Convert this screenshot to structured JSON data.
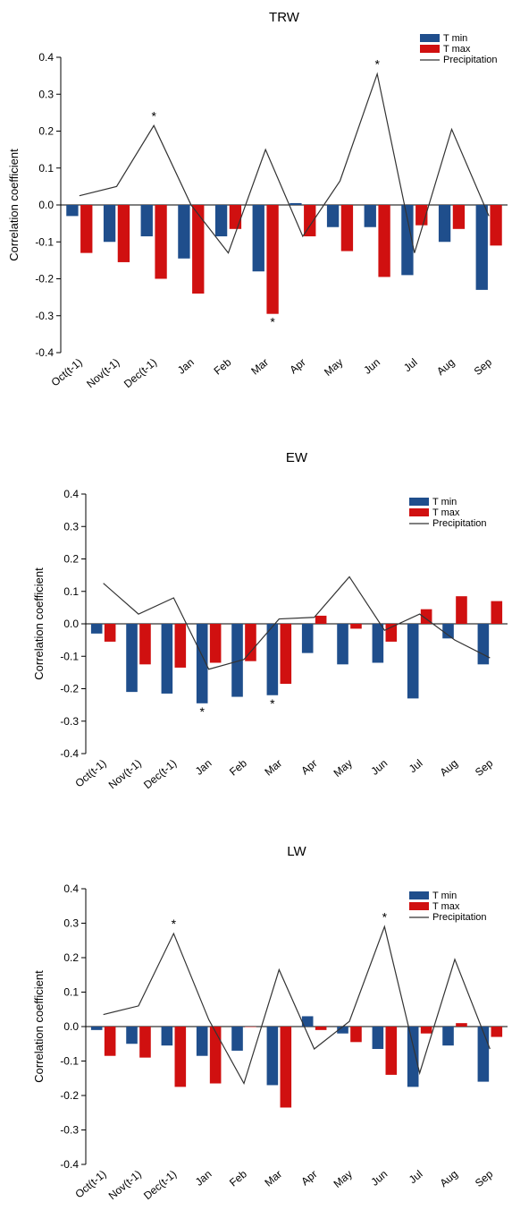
{
  "chart_data": [
    {
      "type": "bar",
      "title": "TRW",
      "ylabel": "Correlation coefficient",
      "xlabel": "",
      "ylim": [
        -0.4,
        0.4
      ],
      "yticks": [
        "-0.4",
        "-0.3",
        "-0.2",
        "-0.1",
        "0.0",
        "0.1",
        "0.2",
        "0.3",
        "0.4"
      ],
      "categories": [
        "Oct(t-1)",
        "Nov(t-1)",
        "Dec(t-1)",
        "Jan",
        "Feb",
        "Mar",
        "Apr",
        "May",
        "Jun",
        "Jul",
        "Aug",
        "Sep"
      ],
      "legend_position": "top-right",
      "series": [
        {
          "name": "T min",
          "kind": "bar",
          "color": "#1f4e8c",
          "values": [
            -0.03,
            -0.1,
            -0.085,
            -0.145,
            -0.085,
            -0.18,
            0.005,
            -0.06,
            -0.06,
            -0.19,
            -0.1,
            -0.23
          ],
          "significant": []
        },
        {
          "name": "T max",
          "kind": "bar",
          "color": "#d01010",
          "values": [
            -0.13,
            -0.155,
            -0.2,
            -0.24,
            -0.065,
            -0.295,
            -0.085,
            -0.125,
            -0.195,
            -0.055,
            -0.065,
            -0.11
          ],
          "significant": [
            5
          ]
        },
        {
          "name": "Precipitation",
          "kind": "line",
          "color": "#333333",
          "values": [
            0.025,
            0.05,
            0.215,
            0.0,
            -0.13,
            0.15,
            -0.085,
            0.065,
            0.355,
            -0.13,
            0.205,
            -0.03
          ],
          "significant": [
            2,
            8
          ]
        }
      ]
    },
    {
      "type": "bar",
      "title": "EW",
      "ylabel": "Correlation coefficient",
      "xlabel": "",
      "ylim": [
        -0.4,
        0.4
      ],
      "yticks": [
        "-0.4",
        "-0.3",
        "-0.2",
        "-0.1",
        "0.0",
        "0.1",
        "0.2",
        "0.3",
        "0.4"
      ],
      "categories": [
        "Oct(t-1)",
        "Nov(t-1)",
        "Dec(t-1)",
        "Jan",
        "Feb",
        "Mar",
        "Apr",
        "May",
        "Jun",
        "Jul",
        "Aug",
        "Sep"
      ],
      "legend_position": "top-right",
      "series": [
        {
          "name": "T min",
          "kind": "bar",
          "color": "#1f4e8c",
          "values": [
            -0.03,
            -0.21,
            -0.215,
            -0.245,
            -0.225,
            -0.22,
            -0.09,
            -0.125,
            -0.12,
            -0.23,
            -0.045,
            -0.125
          ],
          "significant": [
            3,
            5
          ]
        },
        {
          "name": "T max",
          "kind": "bar",
          "color": "#d01010",
          "values": [
            -0.055,
            -0.125,
            -0.135,
            -0.12,
            -0.115,
            -0.185,
            0.025,
            -0.015,
            -0.055,
            0.045,
            0.085,
            0.07
          ],
          "significant": []
        },
        {
          "name": "Precipitation",
          "kind": "line",
          "color": "#333333",
          "values": [
            0.125,
            0.03,
            0.08,
            -0.14,
            -0.11,
            0.015,
            0.02,
            0.145,
            -0.02,
            0.03,
            -0.05,
            -0.105
          ],
          "significant": []
        }
      ]
    },
    {
      "type": "bar",
      "title": "LW",
      "ylabel": "Correlation coefficient",
      "xlabel": "",
      "ylim": [
        -0.4,
        0.4
      ],
      "yticks": [
        "-0.4",
        "-0.3",
        "-0.2",
        "-0.1",
        "0.0",
        "0.1",
        "0.2",
        "0.3",
        "0.4"
      ],
      "categories": [
        "Oct(t-1)",
        "Nov(t-1)",
        "Dec(t-1)",
        "Jan",
        "Feb",
        "Mar",
        "Apr",
        "May",
        "Jun",
        "Jul",
        "Aug",
        "Sep"
      ],
      "legend_position": "top-right",
      "series": [
        {
          "name": "T min",
          "kind": "bar",
          "color": "#1f4e8c",
          "values": [
            -0.01,
            -0.05,
            -0.055,
            -0.085,
            -0.07,
            -0.17,
            0.03,
            -0.02,
            -0.065,
            -0.175,
            -0.055,
            -0.16
          ],
          "significant": []
        },
        {
          "name": "T max",
          "kind": "bar",
          "color": "#d01010",
          "values": [
            -0.085,
            -0.09,
            -0.175,
            -0.165,
            0.0,
            -0.235,
            -0.01,
            -0.045,
            -0.14,
            -0.02,
            0.01,
            -0.03
          ],
          "significant": []
        },
        {
          "name": "Precipitation",
          "kind": "line",
          "color": "#333333",
          "values": [
            0.035,
            0.06,
            0.27,
            0.02,
            -0.165,
            0.165,
            -0.065,
            0.015,
            0.29,
            -0.135,
            0.195,
            -0.065
          ],
          "significant": [
            2,
            8
          ]
        }
      ]
    }
  ]
}
